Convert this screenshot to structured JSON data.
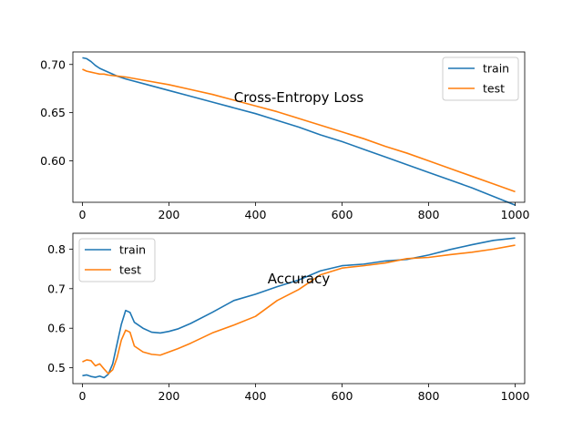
{
  "chart_data": [
    {
      "type": "line",
      "title": "Cross-Entropy Loss",
      "xlabel": "",
      "ylabel": "",
      "xlim": [
        -22,
        1022
      ],
      "ylim": [
        0.557,
        0.713
      ],
      "xticks": [
        0,
        200,
        400,
        600,
        800,
        1000
      ],
      "xtick_labels": [
        "0",
        "200",
        "400",
        "600",
        "800",
        "1000"
      ],
      "yticks": [
        0.6,
        0.65,
        0.7
      ],
      "ytick_labels": [
        "0.60",
        "0.65",
        "0.70"
      ],
      "grid": false,
      "legend": "upper right",
      "colors": {
        "train": "#1f77b4",
        "test": "#ff7f0e"
      },
      "series": [
        {
          "name": "train",
          "x": [
            0,
            10,
            20,
            30,
            40,
            50,
            60,
            80,
            100,
            150,
            200,
            250,
            300,
            350,
            400,
            450,
            500,
            550,
            600,
            650,
            700,
            750,
            800,
            850,
            900,
            950,
            1000
          ],
          "y": [
            0.707,
            0.706,
            0.703,
            0.699,
            0.696,
            0.694,
            0.692,
            0.688,
            0.685,
            0.679,
            0.673,
            0.667,
            0.661,
            0.655,
            0.649,
            0.642,
            0.635,
            0.627,
            0.62,
            0.612,
            0.604,
            0.596,
            0.588,
            0.58,
            0.572,
            0.563,
            0.554
          ]
        },
        {
          "name": "test",
          "x": [
            0,
            10,
            20,
            30,
            40,
            50,
            60,
            80,
            100,
            150,
            200,
            250,
            300,
            350,
            400,
            450,
            500,
            550,
            600,
            650,
            700,
            750,
            800,
            850,
            900,
            950,
            1000
          ],
          "y": [
            0.695,
            0.693,
            0.692,
            0.691,
            0.69,
            0.69,
            0.689,
            0.688,
            0.687,
            0.683,
            0.679,
            0.674,
            0.669,
            0.663,
            0.657,
            0.651,
            0.644,
            0.637,
            0.63,
            0.623,
            0.615,
            0.608,
            0.6,
            0.592,
            0.584,
            0.576,
            0.568
          ]
        }
      ]
    },
    {
      "type": "line",
      "title": "Accuracy",
      "xlabel": "",
      "ylabel": "",
      "xlim": [
        -22,
        1022
      ],
      "ylim": [
        0.46,
        0.84
      ],
      "xticks": [
        0,
        200,
        400,
        600,
        800,
        1000
      ],
      "xtick_labels": [
        "0",
        "200",
        "400",
        "600",
        "800",
        "1000"
      ],
      "yticks": [
        0.5,
        0.6,
        0.7,
        0.8
      ],
      "ytick_labels": [
        "0.5",
        "0.6",
        "0.7",
        "0.8"
      ],
      "grid": false,
      "legend": "upper left",
      "colors": {
        "train": "#1f77b4",
        "test": "#ff7f0e"
      },
      "series": [
        {
          "name": "train",
          "x": [
            0,
            10,
            20,
            30,
            40,
            50,
            60,
            70,
            80,
            90,
            100,
            110,
            120,
            140,
            160,
            180,
            200,
            220,
            250,
            300,
            350,
            400,
            450,
            500,
            550,
            600,
            650,
            700,
            750,
            800,
            850,
            900,
            950,
            1000
          ],
          "y": [
            0.48,
            0.482,
            0.478,
            0.476,
            0.479,
            0.475,
            0.484,
            0.51,
            0.56,
            0.61,
            0.645,
            0.64,
            0.615,
            0.6,
            0.59,
            0.588,
            0.592,
            0.598,
            0.612,
            0.64,
            0.67,
            0.686,
            0.705,
            0.722,
            0.745,
            0.758,
            0.762,
            0.77,
            0.774,
            0.785,
            0.799,
            0.811,
            0.822,
            0.828
          ]
        },
        {
          "name": "test",
          "x": [
            0,
            10,
            20,
            30,
            40,
            50,
            60,
            70,
            80,
            90,
            100,
            110,
            120,
            140,
            160,
            180,
            200,
            220,
            250,
            300,
            350,
            400,
            450,
            500,
            550,
            600,
            650,
            700,
            750,
            800,
            850,
            900,
            950,
            1000
          ],
          "y": [
            0.515,
            0.52,
            0.518,
            0.505,
            0.51,
            0.497,
            0.485,
            0.495,
            0.525,
            0.57,
            0.595,
            0.59,
            0.555,
            0.54,
            0.534,
            0.532,
            0.54,
            0.548,
            0.562,
            0.588,
            0.608,
            0.63,
            0.67,
            0.698,
            0.735,
            0.752,
            0.758,
            0.765,
            0.776,
            0.779,
            0.786,
            0.792,
            0.8,
            0.81
          ]
        }
      ]
    }
  ]
}
